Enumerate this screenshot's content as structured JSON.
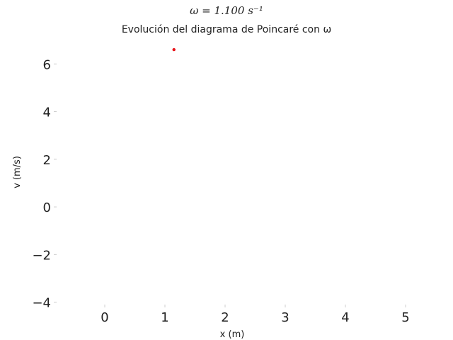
{
  "chart_data": {
    "type": "scatter",
    "title": "ω = 1.100 s⁻¹",
    "subtitle": "Evolución del diagrama de Poincaré con ω",
    "xlabel": "x (m)",
    "ylabel": "v (m/s)",
    "xlim": [
      -0.8,
      5.2
    ],
    "ylim": [
      -4.1,
      6.9
    ],
    "xticks": [
      0,
      1,
      2,
      3,
      4,
      5
    ],
    "yticks": [
      -4,
      -2,
      0,
      2,
      4,
      6
    ],
    "xtick_labels": [
      "0",
      "1",
      "2",
      "3",
      "4",
      "5"
    ],
    "ytick_labels": [
      "−4",
      "−2",
      "0",
      "2",
      "4",
      "6"
    ],
    "grid": false,
    "point_color": "#e8151b",
    "points": [
      {
        "x": 1.15,
        "y": 6.6
      }
    ]
  }
}
